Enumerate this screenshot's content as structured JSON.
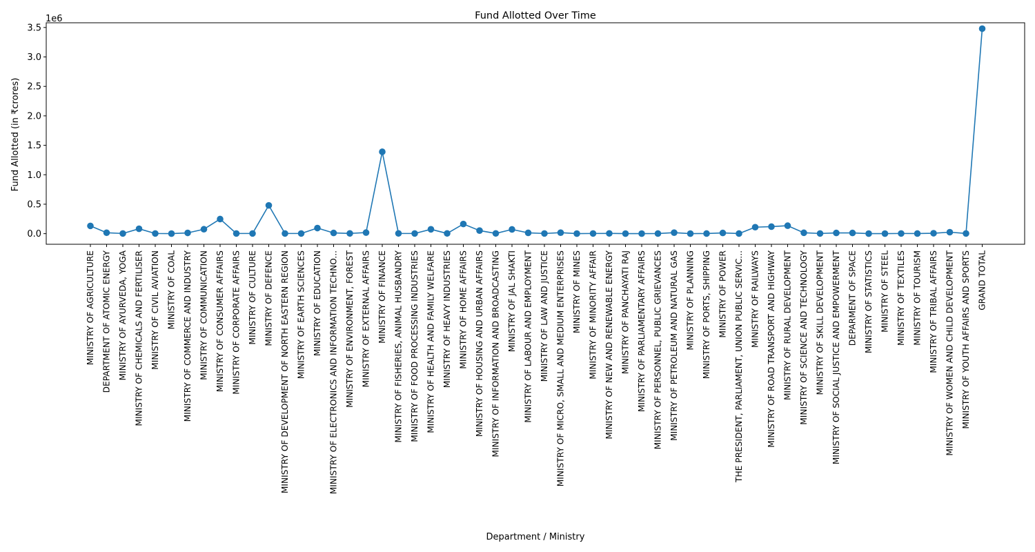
{
  "chart_data": {
    "type": "line",
    "title": "Fund Allotted Over Time",
    "xlabel": "Department / Ministry",
    "ylabel": "Fund Allotted (in ₹crores)",
    "y_multiplier_label": "1e6",
    "y_ticks": [
      "0.0",
      "0.5",
      "1.0",
      "1.5",
      "2.0",
      "2.5",
      "3.0",
      "3.5"
    ],
    "ylim": [
      -0.18,
      3.58
    ],
    "y_unit_scale": 1000000,
    "grid": false,
    "line_color": "#1f77b4",
    "marker": "circle",
    "categories": [
      "MINISTRY OF AGRICULTURE",
      "DEPARTMENT OF ATOMIC ENERGY",
      "MINISTRY OF AYURVEDA, YOGA",
      "MINISTRY OF CHEMICALS AND FERTILISER",
      "MINISTRY OF CIVIL AVIATION",
      "MINISTRY OF COAL",
      "MINISTRY OF COMMERCE AND INDUSTRY",
      "MINISTRY OF COMMUNICATION",
      "MINISTRY OF CONSUMER AFFAIRS",
      "MINISTRY OF CORPORATE AFFAIRS",
      "MINISTRY OF CULTURE",
      "MINISTRY OF DEFENCE",
      "MINISTRY OF DEVELOPMENT OF NORTH EASTERN REGION",
      "MINISTRY OF EARTH SCIENCES",
      "MINISTRY OF EDUCATION",
      "MINISTRY OF ELECTRONICS AND INFORMATION TECHNO...",
      "MINISTRY OF ENVIRONMENT, FOREST",
      "MINISTRY OF EXTERNAL AFFAIRS",
      "MINISTRY OF FINANCE",
      "MINISTRY OF FISHERIES, ANIMAL HUSBANDRY",
      "MINISTRY OF FOOD PROCESSING INDUSTRIES",
      "MINISTRY OF HEALTH AND FAMILY WELFARE",
      "MINISTRY OF HEAVY INDUSTRIES",
      "MINISTRY OF HOME AFFAIRS",
      "MINISTRY OF HOUSING AND URBAN AFFAIRS",
      "MINISTRY OF INFORMATION AND BROADCASTING",
      "MINISTRY OF JAL SHAKTI",
      "MINISTRY OF LABOUR AND EMPLOYMENT",
      "MINISTRY OF LAW AND JUSTICE",
      "MINISTRY OF MICRO, SMALL AND MEDIUM ENTERPRISES",
      "MINISTRY OF MINES",
      "MINISTRY OF MINORITY AFFAIR",
      "MINISTRY OF NEW AND RENEWABLE ENERGY",
      "MINISTRY OF PANCHAYATI RAJ",
      "MINISTRY OF PARLIAMENTARY AFFAIRS",
      "MINISTRY OF PERSONNEL, PUBLIC GRIEVANCES",
      "MINISTRY OF PETROLEUM AND NATURAL GAS",
      "MINISTRY OF PLANNING",
      "MINISTRY OF PORTS, SHIPPING",
      "MINISTRY OF POWER",
      "THE PRESIDENT, PARLIAMENT, UNION PUBLIC SERVIC...",
      "MINISTRY OF RAILWAYS",
      "MINISTRY OF ROAD TRANSPORT AND HIGHWAY",
      "MINISTRY OF RURAL DEVELOPMENT",
      "MINISTRY OF SCIENCE AND TECHNOLOGY",
      "MINISTRY OF SKILL DEVELOPMENT",
      "MINISTRY OF SOCIAL JUSTICE AND EMPOWERMENT",
      "DEPARMENT OF SPACE",
      "MINISTRY OF STATISTICS",
      "MINISTRY OF STEEL",
      "MINISTRY OF TEXTILES",
      "MINISTRY OF TOURISM",
      "MINISTRY OF TRIBAL AFFAIRS",
      "MINISTRY OF WOMEN AND CHILD DEVELOPMENT",
      "MINISTRY OF YOUTH AFFAIRS AND SPORTS",
      "GRAND TOTAL"
    ],
    "values": [
      132000,
      16000,
      3000,
      83000,
      3000,
      1000,
      13000,
      75000,
      248000,
      3000,
      3000,
      480000,
      3000,
      3000,
      95000,
      12000,
      4000,
      18000,
      1390000,
      4000,
      3000,
      74000,
      4000,
      164000,
      52000,
      4000,
      72000,
      14000,
      3000,
      17000,
      1000,
      3000,
      4000,
      1000,
      1000,
      2000,
      17000,
      1000,
      2000,
      12000,
      2000,
      110000,
      119000,
      135000,
      15000,
      3000,
      12000,
      12000,
      1000,
      1000,
      3000,
      2000,
      7000,
      25000,
      3000,
      3480000
    ]
  }
}
